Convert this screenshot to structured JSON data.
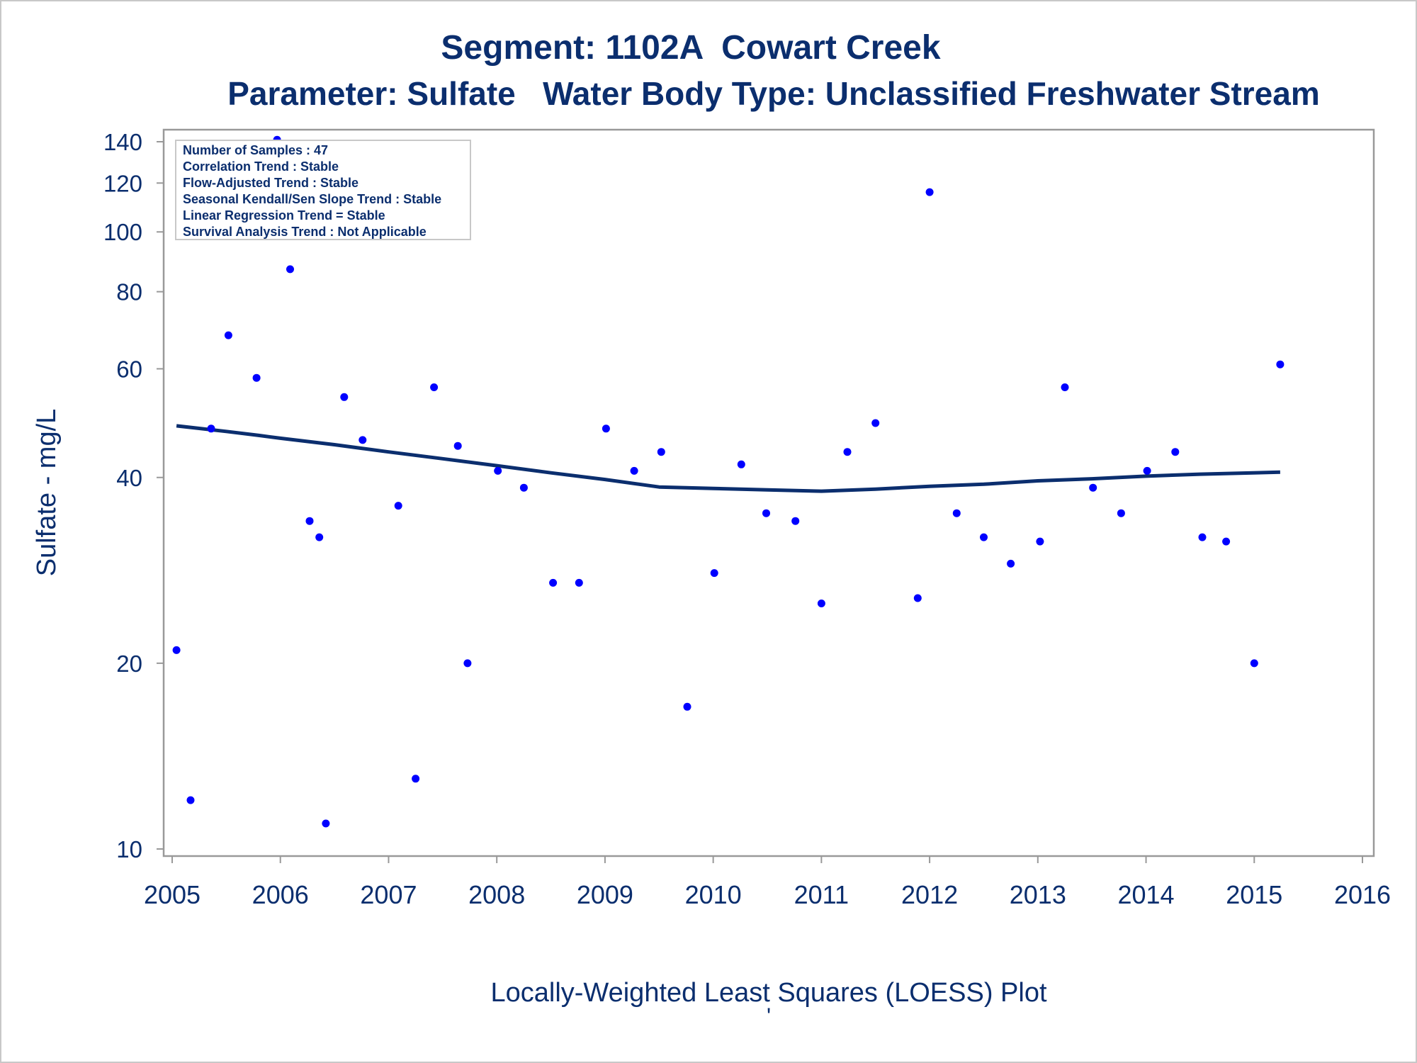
{
  "chart_data": {
    "type": "scatter",
    "title": "Segment: 1102A  Cowart Creek",
    "subtitle": "Parameter: Sulfate   Water Body Type: Unclassified Freshwater Stream",
    "xlabel": "Locally-Weighted Least Squares (LOESS) Plot",
    "xlabel_mark": "'",
    "ylabel": "Sulfate - mg/L",
    "y_scale": "log",
    "xlim": [
      2005,
      2016
    ],
    "ylim": [
      9.8,
      148
    ],
    "x_ticks": [
      2005,
      2006,
      2007,
      2008,
      2009,
      2010,
      2011,
      2012,
      2013,
      2014,
      2015,
      2016
    ],
    "y_ticks": [
      10,
      20,
      40,
      60,
      80,
      100,
      120,
      140
    ],
    "grid": false,
    "colors": {
      "points": "#0000ff",
      "loess": "#0b2e6e",
      "text": "#0b2e6e",
      "frame": "#999999"
    },
    "inset": [
      "Number of Samples : 47",
      "Correlation Trend : Stable",
      "Flow-Adjusted Trend : Stable",
      "Seasonal Kendall/Sen Slope Trend : Stable",
      "Linear Regression Trend = Stable",
      "Survival Analysis Trend : Not Applicable"
    ],
    "series": [
      {
        "type": "scatter",
        "points": [
          [
            2005.04,
            21
          ],
          [
            2005.17,
            12
          ],
          [
            2005.36,
            48
          ],
          [
            2005.52,
            68
          ],
          [
            2005.78,
            58
          ],
          [
            2005.97,
            141
          ],
          [
            2006.09,
            87
          ],
          [
            2006.27,
            34
          ],
          [
            2006.36,
            32
          ],
          [
            2006.42,
            11
          ],
          [
            2006.59,
            54
          ],
          [
            2006.76,
            46
          ],
          [
            2007.09,
            36
          ],
          [
            2007.25,
            13
          ],
          [
            2007.42,
            56
          ],
          [
            2007.64,
            45
          ],
          [
            2007.73,
            20
          ],
          [
            2008.01,
            41
          ],
          [
            2008.25,
            38.5
          ],
          [
            2008.52,
            27
          ],
          [
            2008.76,
            27
          ],
          [
            2009.01,
            48
          ],
          [
            2009.27,
            41
          ],
          [
            2009.52,
            44
          ],
          [
            2009.76,
            17
          ],
          [
            2010.01,
            28
          ],
          [
            2010.26,
            42
          ],
          [
            2010.49,
            35
          ],
          [
            2010.76,
            34
          ],
          [
            2011.0,
            25
          ],
          [
            2011.24,
            44
          ],
          [
            2011.5,
            49
          ],
          [
            2011.89,
            25.5
          ],
          [
            2012.0,
            116
          ],
          [
            2012.25,
            35
          ],
          [
            2012.5,
            32
          ],
          [
            2012.75,
            29
          ],
          [
            2013.02,
            31.5
          ],
          [
            2013.25,
            56
          ],
          [
            2013.51,
            38.5
          ],
          [
            2013.77,
            35
          ],
          [
            2014.01,
            41
          ],
          [
            2014.27,
            44
          ],
          [
            2014.52,
            32
          ],
          [
            2014.74,
            31.5
          ],
          [
            2015.0,
            20
          ],
          [
            2015.24,
            61
          ]
        ]
      },
      {
        "type": "line",
        "name": "LOESS",
        "points": [
          [
            2005.04,
            48.5
          ],
          [
            2005.5,
            47.5
          ],
          [
            2005.8,
            46.8
          ],
          [
            2006.0,
            46.3
          ],
          [
            2006.5,
            45.2
          ],
          [
            2007.0,
            44.0
          ],
          [
            2007.5,
            42.9
          ],
          [
            2008.0,
            41.8
          ],
          [
            2008.5,
            40.7
          ],
          [
            2009.0,
            39.7
          ],
          [
            2009.5,
            38.6
          ],
          [
            2010.0,
            38.4
          ],
          [
            2010.5,
            38.2
          ],
          [
            2011.0,
            38.0
          ],
          [
            2011.5,
            38.3
          ],
          [
            2012.0,
            38.7
          ],
          [
            2012.5,
            39.0
          ],
          [
            2013.0,
            39.5
          ],
          [
            2013.5,
            39.8
          ],
          [
            2014.0,
            40.2
          ],
          [
            2014.5,
            40.5
          ],
          [
            2015.24,
            40.8
          ]
        ]
      }
    ]
  }
}
